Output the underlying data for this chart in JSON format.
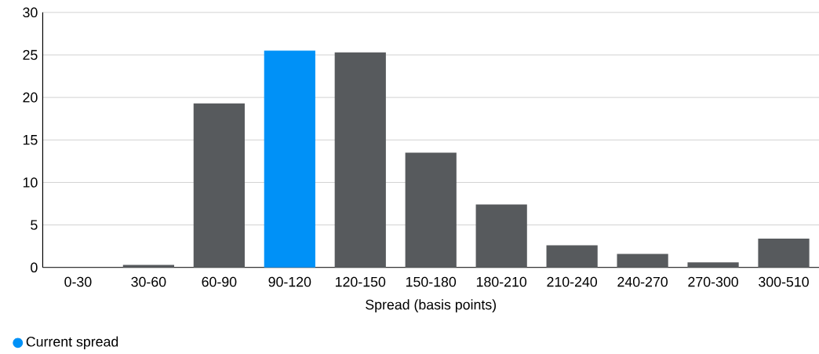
{
  "chart_data": {
    "type": "bar",
    "xlabel": "Spread (basis points)",
    "categories": [
      "0-30",
      "30-60",
      "60-90",
      "90-120",
      "120-150",
      "150-180",
      "180-210",
      "210-240",
      "240-270",
      "270-300",
      "300-510"
    ],
    "series": [
      {
        "color": "#575a5d",
        "values": [
          0,
          0.3,
          19.3,
          null,
          25.3,
          13.5,
          7.4,
          2.6,
          1.6,
          0.6,
          3.4
        ]
      },
      {
        "name": "Current spread",
        "color": "#0091f7",
        "values": [
          null,
          null,
          null,
          25.5,
          null,
          null,
          null,
          null,
          null,
          null,
          null
        ]
      }
    ],
    "stacked": true,
    "ylim": [
      0,
      30
    ],
    "yticks": [
      0,
      5,
      10,
      15,
      20,
      25,
      30
    ],
    "grid": "y",
    "legend": "bottom left"
  }
}
